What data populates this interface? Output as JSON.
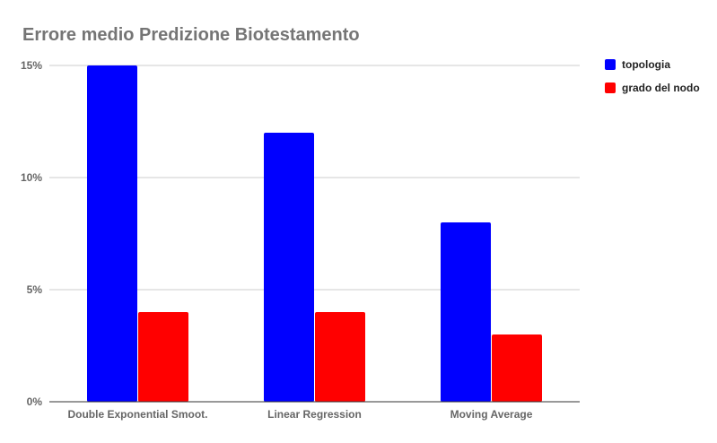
{
  "chart_data": {
    "type": "bar",
    "title": "Errore medio Predizione Biotestamento",
    "categories": [
      "Double Exponential Smoot.",
      "Linear Regression",
      "Moving Average"
    ],
    "series": [
      {
        "name": "topologia",
        "color": "#0000ff",
        "values": [
          15,
          12,
          8
        ]
      },
      {
        "name": "grado del nodo",
        "color": "#ff0000",
        "values": [
          4,
          4,
          3
        ]
      }
    ],
    "ylim": [
      0,
      15
    ],
    "yticks": [
      0,
      5,
      10,
      15
    ],
    "ytick_labels": [
      "0%",
      "5%",
      "10%",
      "15%"
    ],
    "grid": true,
    "legend_position": "right"
  }
}
